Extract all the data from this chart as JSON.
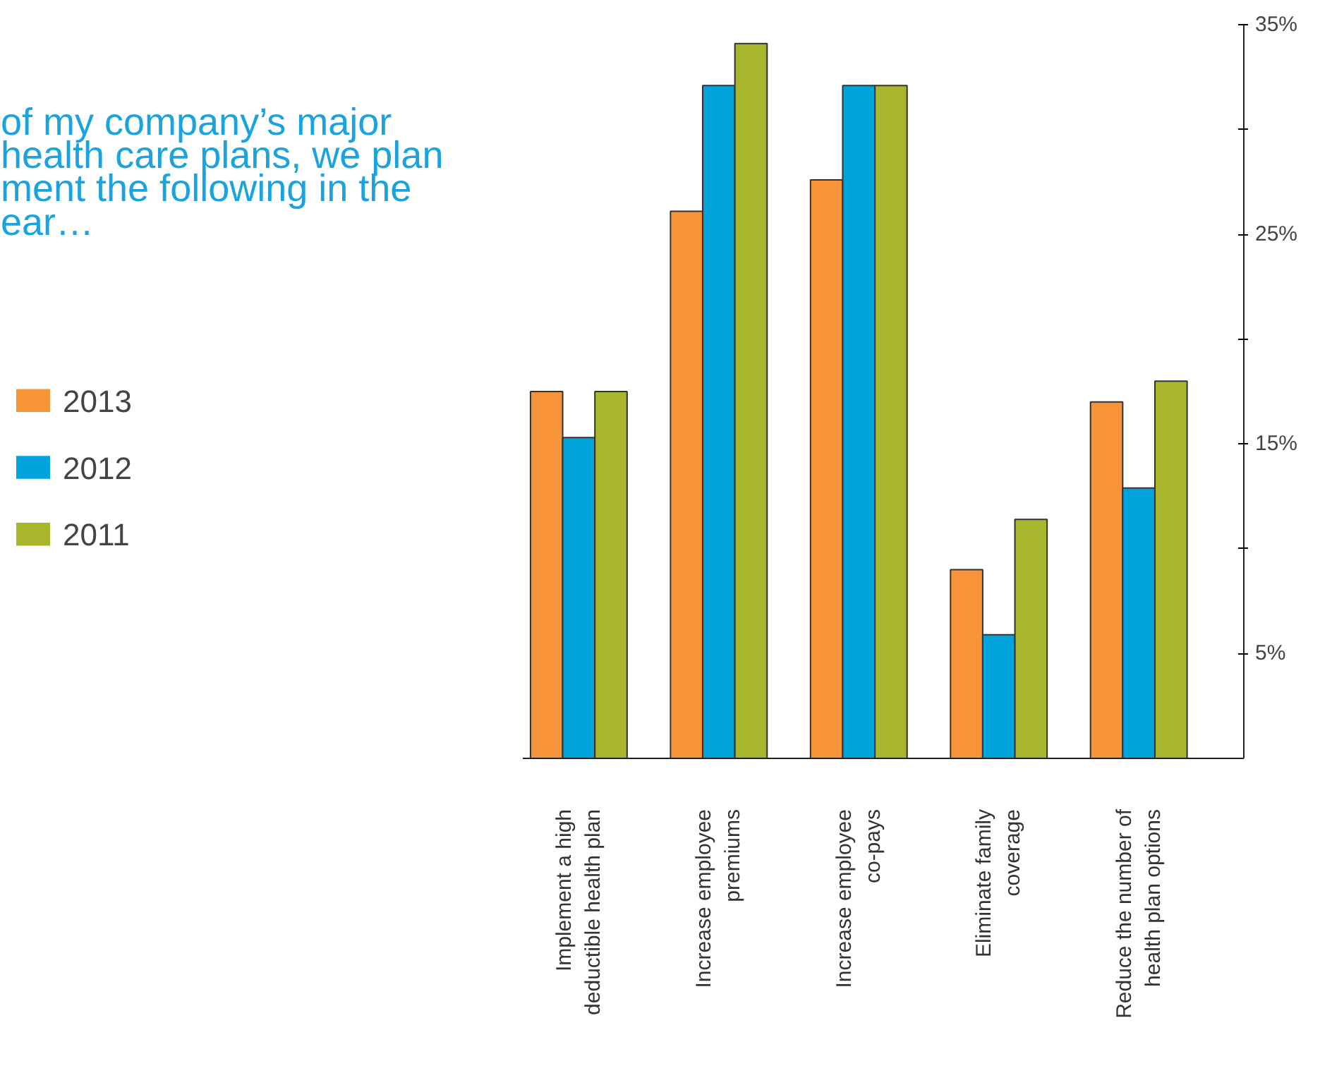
{
  "chart_data": {
    "type": "bar",
    "title": "of my company’s major\nhealth care plans, we plan\nment the following in the\near…",
    "categories": [
      "Implement a high\ndeductible health plan",
      "Increase employee\npremiums",
      "Increase employee\nco-pays",
      "Eliminate family\ncoverage",
      "Reduce the number of\nhealth plan options"
    ],
    "series": [
      {
        "name": "2013",
        "color": "#f7943a",
        "values": [
          17.5,
          26.1,
          27.6,
          9.0,
          17.0
        ]
      },
      {
        "name": "2012",
        "color": "#00a3dc",
        "values": [
          15.3,
          32.1,
          32.1,
          5.9,
          12.9
        ]
      },
      {
        "name": "2011",
        "color": "#a8b62e",
        "values": [
          17.5,
          34.1,
          32.1,
          11.4,
          18.0
        ]
      }
    ],
    "ylim": [
      0,
      35
    ],
    "yticks": [
      {
        "value": 5,
        "label": "5%"
      },
      {
        "value": 10,
        "label": null
      },
      {
        "value": 15,
        "label": "15%"
      },
      {
        "value": 20,
        "label": null
      },
      {
        "value": 25,
        "label": "25%"
      },
      {
        "value": 30,
        "label": null
      },
      {
        "value": 35,
        "label": "35%"
      }
    ],
    "grid": false,
    "legend": "left"
  }
}
